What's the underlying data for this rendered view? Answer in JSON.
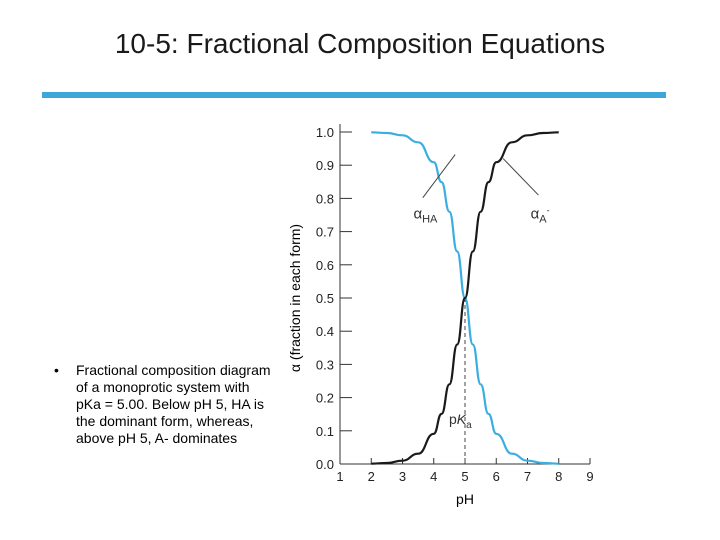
{
  "slide": {
    "title": "10-5: Fractional Composition Equations",
    "bullet_marker": "•",
    "bullet_text": "Fractional composition diagram of a monoprotic system with pKa = 5.00. Below pH 5, HA is the dominant form, whereas, above pH 5, A- dominates",
    "accent_color": "#3ea6d8"
  },
  "chart_data": {
    "type": "line",
    "xlabel": "pH",
    "ylabel": "α (fraction in each form)",
    "xlim": [
      1,
      9
    ],
    "ylim": [
      0,
      1
    ],
    "x_ticks": [
      "1",
      "2",
      "3",
      "4",
      "5",
      "6",
      "7",
      "8",
      "9"
    ],
    "y_ticks": [
      "0.0",
      "0.1",
      "0.2",
      "0.3",
      "0.4",
      "0.5",
      "0.6",
      "0.7",
      "0.8",
      "0.9",
      "1.0"
    ],
    "pKa": 5.0,
    "pKa_label": "pKa",
    "series": [
      {
        "name": "αHA",
        "color": "#3aaee0",
        "x": [
          2.0,
          2.5,
          3.0,
          3.5,
          4.0,
          4.25,
          4.5,
          4.75,
          5.0,
          5.25,
          5.5,
          5.75,
          6.0,
          6.5,
          7.0,
          7.5,
          8.0
        ],
        "y": [
          0.999,
          0.997,
          0.99,
          0.969,
          0.909,
          0.849,
          0.76,
          0.64,
          0.5,
          0.36,
          0.24,
          0.151,
          0.091,
          0.031,
          0.01,
          0.003,
          0.001
        ]
      },
      {
        "name": "αA-",
        "color": "#1a1a1a",
        "x": [
          2.0,
          2.5,
          3.0,
          3.5,
          4.0,
          4.25,
          4.5,
          4.75,
          5.0,
          5.25,
          5.5,
          5.75,
          6.0,
          6.5,
          7.0,
          7.5,
          8.0
        ],
        "y": [
          0.001,
          0.003,
          0.01,
          0.031,
          0.091,
          0.151,
          0.24,
          0.36,
          0.5,
          0.64,
          0.76,
          0.849,
          0.909,
          0.969,
          0.99,
          0.997,
          0.999
        ]
      }
    ],
    "annotations": [
      {
        "main": "α",
        "sub": "HA",
        "sup": ""
      },
      {
        "main": "α",
        "sub": "A",
        "sup": "-"
      }
    ],
    "grid": false
  }
}
